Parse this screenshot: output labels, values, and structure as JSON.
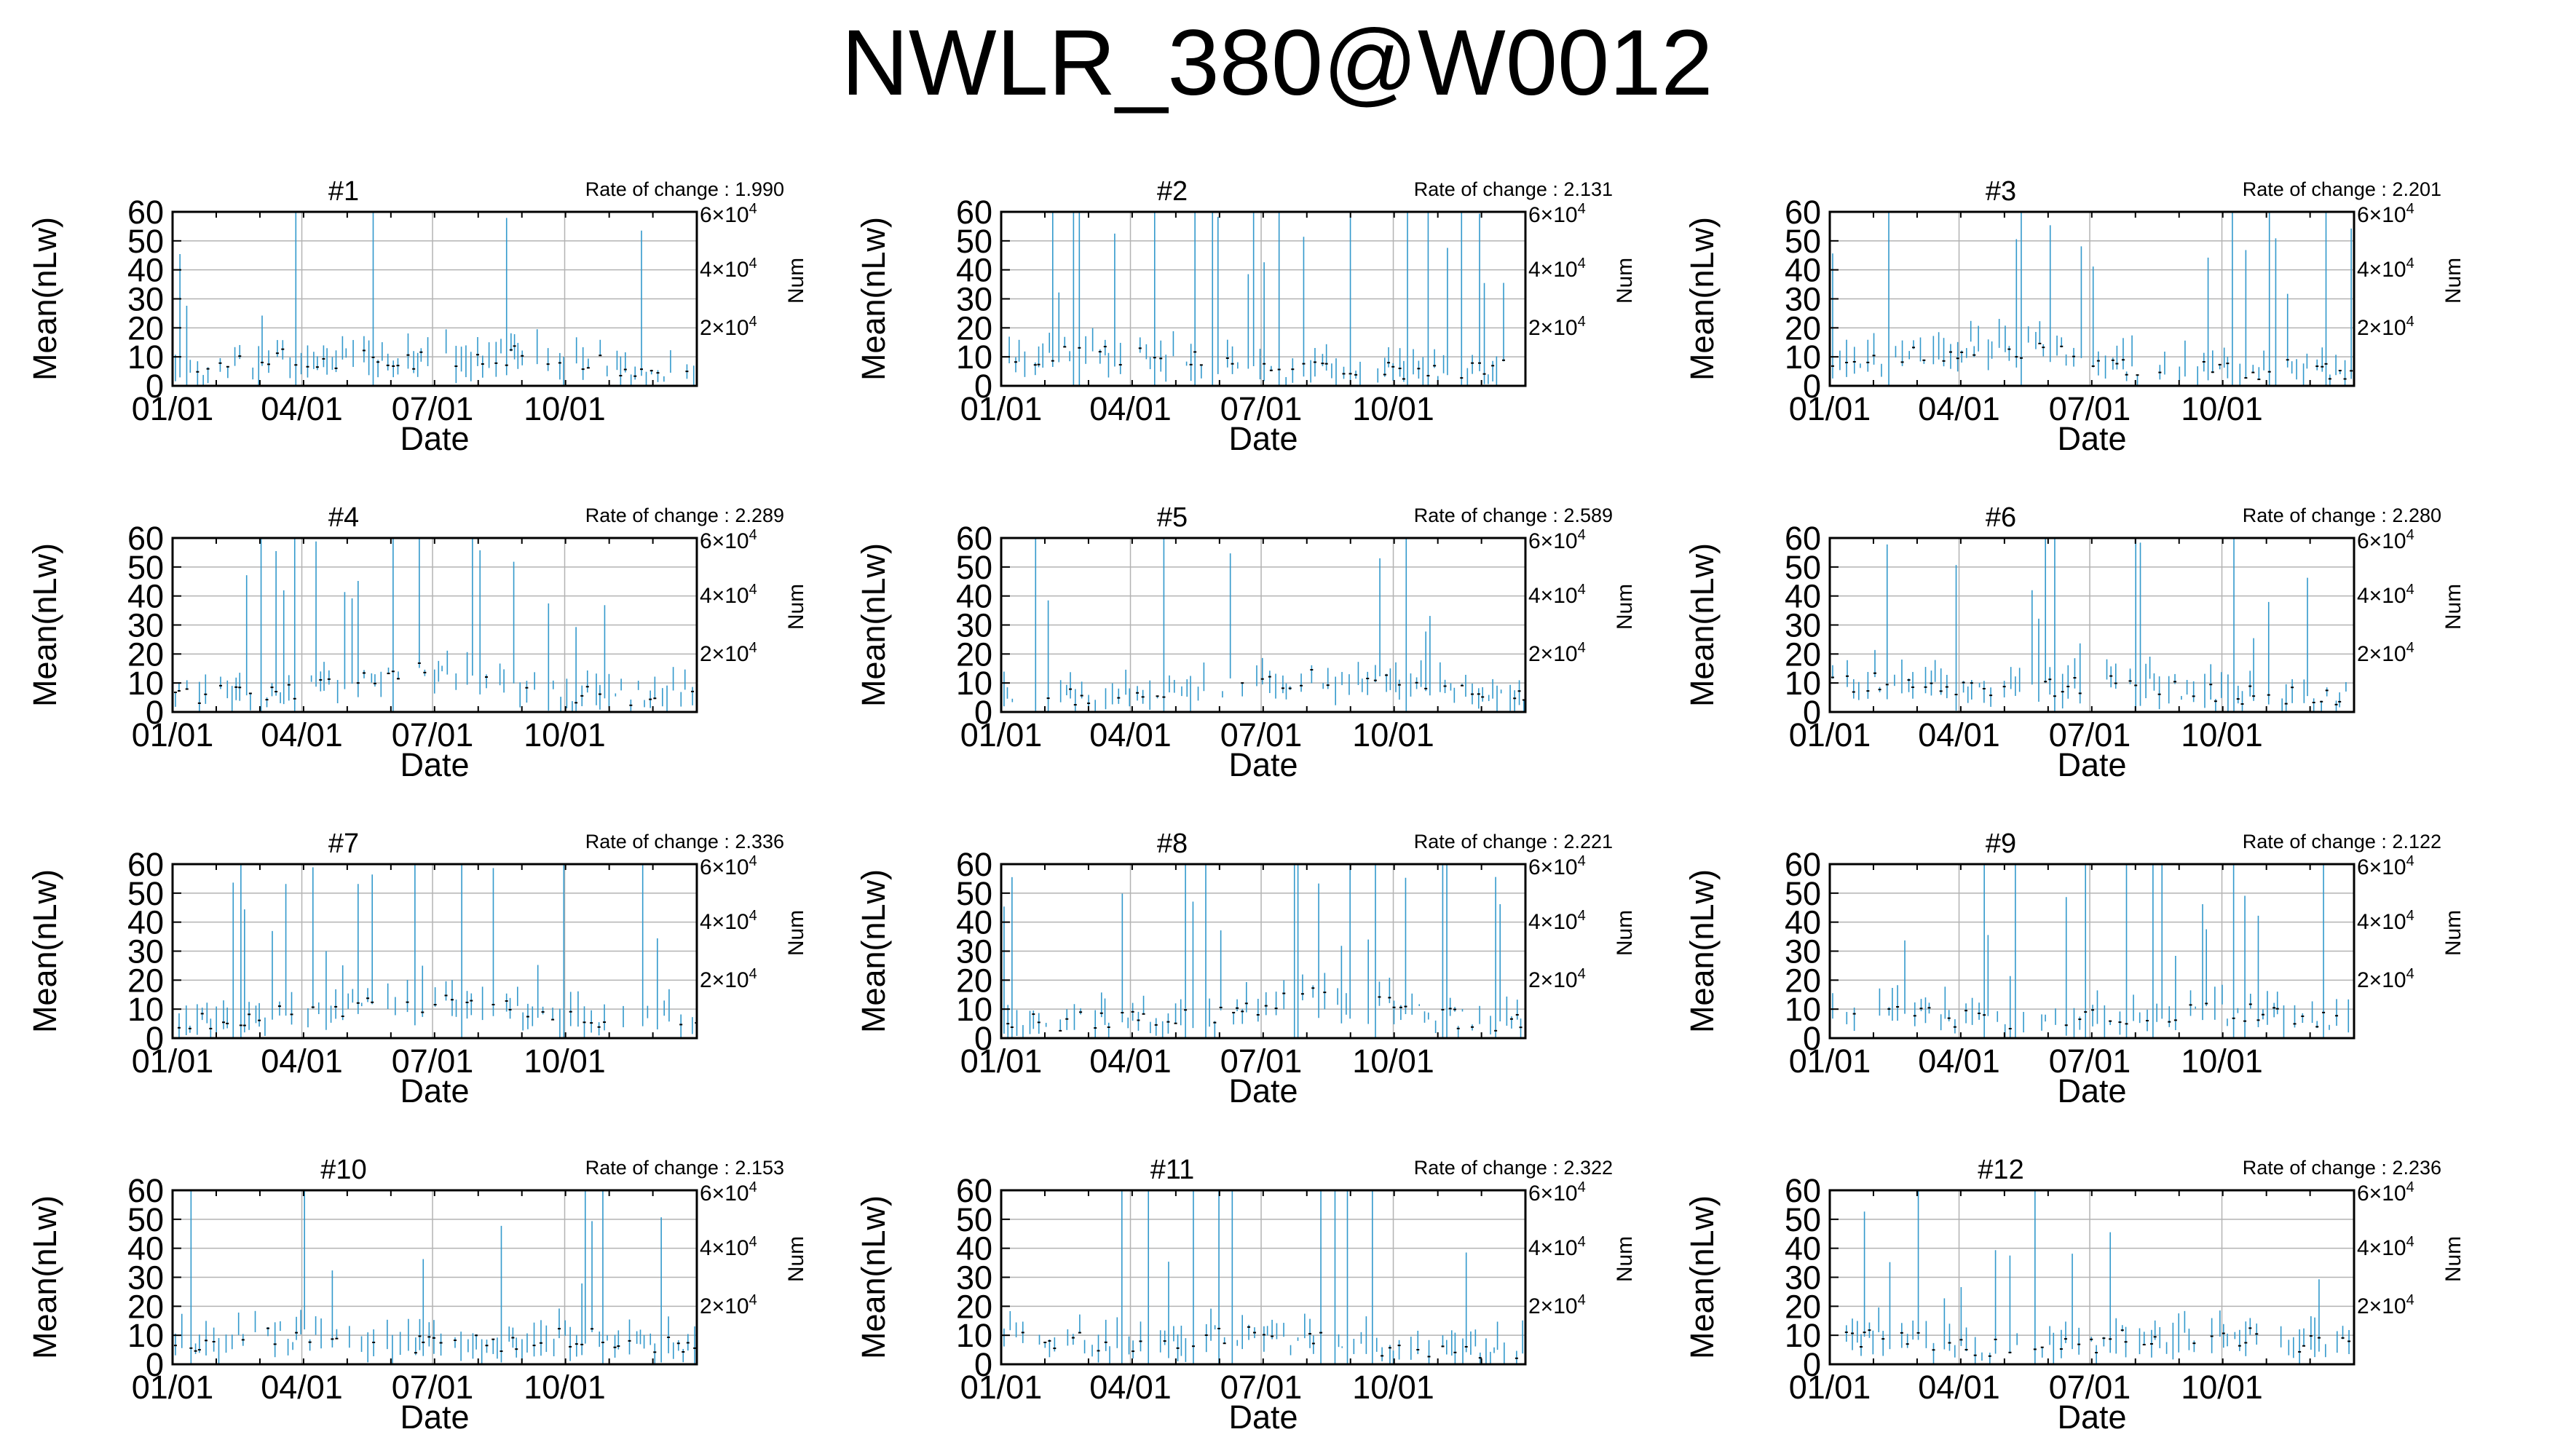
{
  "title": "NWLR_380@W0012",
  "panel_common": {
    "xlabel": "Date",
    "ylabel": "Mean(nLw)",
    "y2label": "Num",
    "x_ticks": [
      "01/01",
      "04/01",
      "07/01",
      "10/01"
    ],
    "y_ticks": [
      "0",
      "10",
      "20",
      "30",
      "40",
      "50",
      "60"
    ],
    "y2_ticks": [
      {
        "base": "2×10",
        "exp": "4"
      },
      {
        "base": "4×10",
        "exp": "4"
      },
      {
        "base": "6×10",
        "exp": "4"
      }
    ],
    "rate_prefix": "Rate of change : ",
    "line_color": "#3399cc",
    "grid_color": "#b3b3b3"
  },
  "chart_data": [
    {
      "type": "bar",
      "panel": "#1",
      "rate": "1.990",
      "xlabel": "Date",
      "ylabel": "Mean(nLw)",
      "y2label": "Num",
      "ylim": [
        0,
        60
      ],
      "xlim_days": [
        0,
        365
      ],
      "grid": true
    },
    {
      "type": "bar",
      "panel": "#2",
      "rate": "2.131",
      "xlabel": "Date",
      "ylabel": "Mean(nLw)",
      "y2label": "Num",
      "ylim": [
        0,
        60
      ],
      "xlim_days": [
        0,
        365
      ],
      "grid": true
    },
    {
      "type": "bar",
      "panel": "#3",
      "rate": "2.201",
      "xlabel": "Date",
      "ylabel": "Mean(nLw)",
      "y2label": "Num",
      "ylim": [
        0,
        60
      ],
      "xlim_days": [
        0,
        365
      ],
      "grid": true
    },
    {
      "type": "bar",
      "panel": "#4",
      "rate": "2.289",
      "xlabel": "Date",
      "ylabel": "Mean(nLw)",
      "y2label": "Num",
      "ylim": [
        0,
        60
      ],
      "xlim_days": [
        0,
        365
      ],
      "grid": true
    },
    {
      "type": "bar",
      "panel": "#5",
      "rate": "2.589",
      "xlabel": "Date",
      "ylabel": "Mean(nLw)",
      "y2label": "Num",
      "ylim": [
        0,
        60
      ],
      "xlim_days": [
        0,
        365
      ],
      "grid": true
    },
    {
      "type": "bar",
      "panel": "#6",
      "rate": "2.280",
      "xlabel": "Date",
      "ylabel": "Mean(nLw)",
      "y2label": "Num",
      "ylim": [
        0,
        60
      ],
      "xlim_days": [
        0,
        365
      ],
      "grid": true
    },
    {
      "type": "bar",
      "panel": "#7",
      "rate": "2.336",
      "xlabel": "Date",
      "ylabel": "Mean(nLw)",
      "y2label": "Num",
      "ylim": [
        0,
        60
      ],
      "xlim_days": [
        0,
        365
      ],
      "grid": true
    },
    {
      "type": "bar",
      "panel": "#8",
      "rate": "2.221",
      "xlabel": "Date",
      "ylabel": "Mean(nLw)",
      "y2label": "Num",
      "ylim": [
        0,
        60
      ],
      "xlim_days": [
        0,
        365
      ],
      "grid": true
    },
    {
      "type": "bar",
      "panel": "#9",
      "rate": "2.122",
      "xlabel": "Date",
      "ylabel": "Mean(nLw)",
      "y2label": "Num",
      "ylim": [
        0,
        60
      ],
      "xlim_days": [
        0,
        365
      ],
      "grid": true
    },
    {
      "type": "bar",
      "panel": "#10",
      "rate": "2.153",
      "xlabel": "Date",
      "ylabel": "Mean(nLw)",
      "y2label": "Num",
      "ylim": [
        0,
        60
      ],
      "xlim_days": [
        0,
        365
      ],
      "grid": true
    },
    {
      "type": "bar",
      "panel": "#11",
      "rate": "2.322",
      "xlabel": "Date",
      "ylabel": "Mean(nLw)",
      "y2label": "Num",
      "ylim": [
        0,
        60
      ],
      "xlim_days": [
        0,
        365
      ],
      "grid": true
    },
    {
      "type": "bar",
      "panel": "#12",
      "rate": "2.236",
      "xlabel": "Date",
      "ylabel": "Mean(nLw)",
      "y2label": "Num",
      "ylim": [
        0,
        60
      ],
      "xlim_days": [
        0,
        365
      ],
      "grid": true
    }
  ]
}
